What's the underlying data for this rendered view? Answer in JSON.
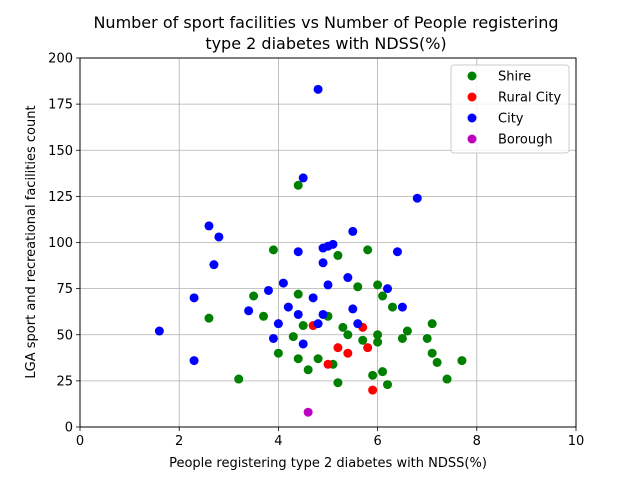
{
  "chart_data": {
    "type": "scatter",
    "title_lines": [
      "Number of sport facilities vs Number of People registering",
      "type 2 diabetes with NDSS(%)"
    ],
    "xlabel": "People registering type 2 diabetes with NDSS(%)",
    "ylabel": "LGA sport and recreational facilities count",
    "xlim": [
      0,
      10
    ],
    "ylim": [
      0,
      200
    ],
    "xticks": [
      0,
      2,
      4,
      6,
      8,
      10
    ],
    "yticks": [
      0,
      25,
      50,
      75,
      100,
      125,
      150,
      175,
      200
    ],
    "grid": true,
    "legend_position": "top-right",
    "series": [
      {
        "name": "Shire",
        "color": "#008000",
        "points": [
          [
            2.6,
            59
          ],
          [
            3.2,
            26
          ],
          [
            3.5,
            71
          ],
          [
            3.7,
            60
          ],
          [
            3.9,
            96
          ],
          [
            4.0,
            40
          ],
          [
            4.3,
            49
          ],
          [
            4.4,
            131
          ],
          [
            4.4,
            72
          ],
          [
            4.4,
            37
          ],
          [
            4.5,
            55
          ],
          [
            4.6,
            31
          ],
          [
            4.8,
            37
          ],
          [
            5.0,
            60
          ],
          [
            5.1,
            34
          ],
          [
            5.2,
            93
          ],
          [
            5.2,
            24
          ],
          [
            5.3,
            54
          ],
          [
            5.4,
            50
          ],
          [
            5.6,
            76
          ],
          [
            5.7,
            47
          ],
          [
            5.8,
            96
          ],
          [
            5.9,
            28
          ],
          [
            6.0,
            77
          ],
          [
            6.0,
            50
          ],
          [
            6.0,
            46
          ],
          [
            6.1,
            71
          ],
          [
            6.1,
            30
          ],
          [
            6.2,
            23
          ],
          [
            6.3,
            65
          ],
          [
            6.5,
            48
          ],
          [
            6.6,
            52
          ],
          [
            7.0,
            48
          ],
          [
            7.1,
            56
          ],
          [
            7.1,
            40
          ],
          [
            7.2,
            35
          ],
          [
            7.4,
            26
          ],
          [
            7.7,
            36
          ]
        ]
      },
      {
        "name": "Rural City",
        "color": "#ff0000",
        "points": [
          [
            4.7,
            55
          ],
          [
            5.0,
            34
          ],
          [
            5.2,
            43
          ],
          [
            5.4,
            40
          ],
          [
            5.7,
            54
          ],
          [
            5.8,
            43
          ],
          [
            5.9,
            20
          ]
        ]
      },
      {
        "name": "City",
        "color": "#0000ff",
        "points": [
          [
            1.6,
            52
          ],
          [
            2.3,
            70
          ],
          [
            2.3,
            36
          ],
          [
            2.6,
            109
          ],
          [
            2.7,
            88
          ],
          [
            2.8,
            103
          ],
          [
            3.4,
            63
          ],
          [
            3.8,
            74
          ],
          [
            3.9,
            48
          ],
          [
            4.0,
            56
          ],
          [
            4.1,
            78
          ],
          [
            4.2,
            65
          ],
          [
            4.4,
            95
          ],
          [
            4.4,
            61
          ],
          [
            4.5,
            135
          ],
          [
            4.5,
            45
          ],
          [
            4.7,
            70
          ],
          [
            4.8,
            183
          ],
          [
            4.8,
            56
          ],
          [
            4.9,
            97
          ],
          [
            4.9,
            89
          ],
          [
            4.9,
            61
          ],
          [
            5.0,
            98
          ],
          [
            5.0,
            77
          ],
          [
            5.1,
            99
          ],
          [
            5.4,
            81
          ],
          [
            5.5,
            106
          ],
          [
            5.5,
            64
          ],
          [
            5.6,
            56
          ],
          [
            6.2,
            75
          ],
          [
            6.4,
            95
          ],
          [
            6.5,
            65
          ],
          [
            6.8,
            124
          ]
        ]
      },
      {
        "name": "Borough",
        "color": "#bf00bf",
        "points": [
          [
            4.6,
            8
          ]
        ]
      }
    ]
  }
}
